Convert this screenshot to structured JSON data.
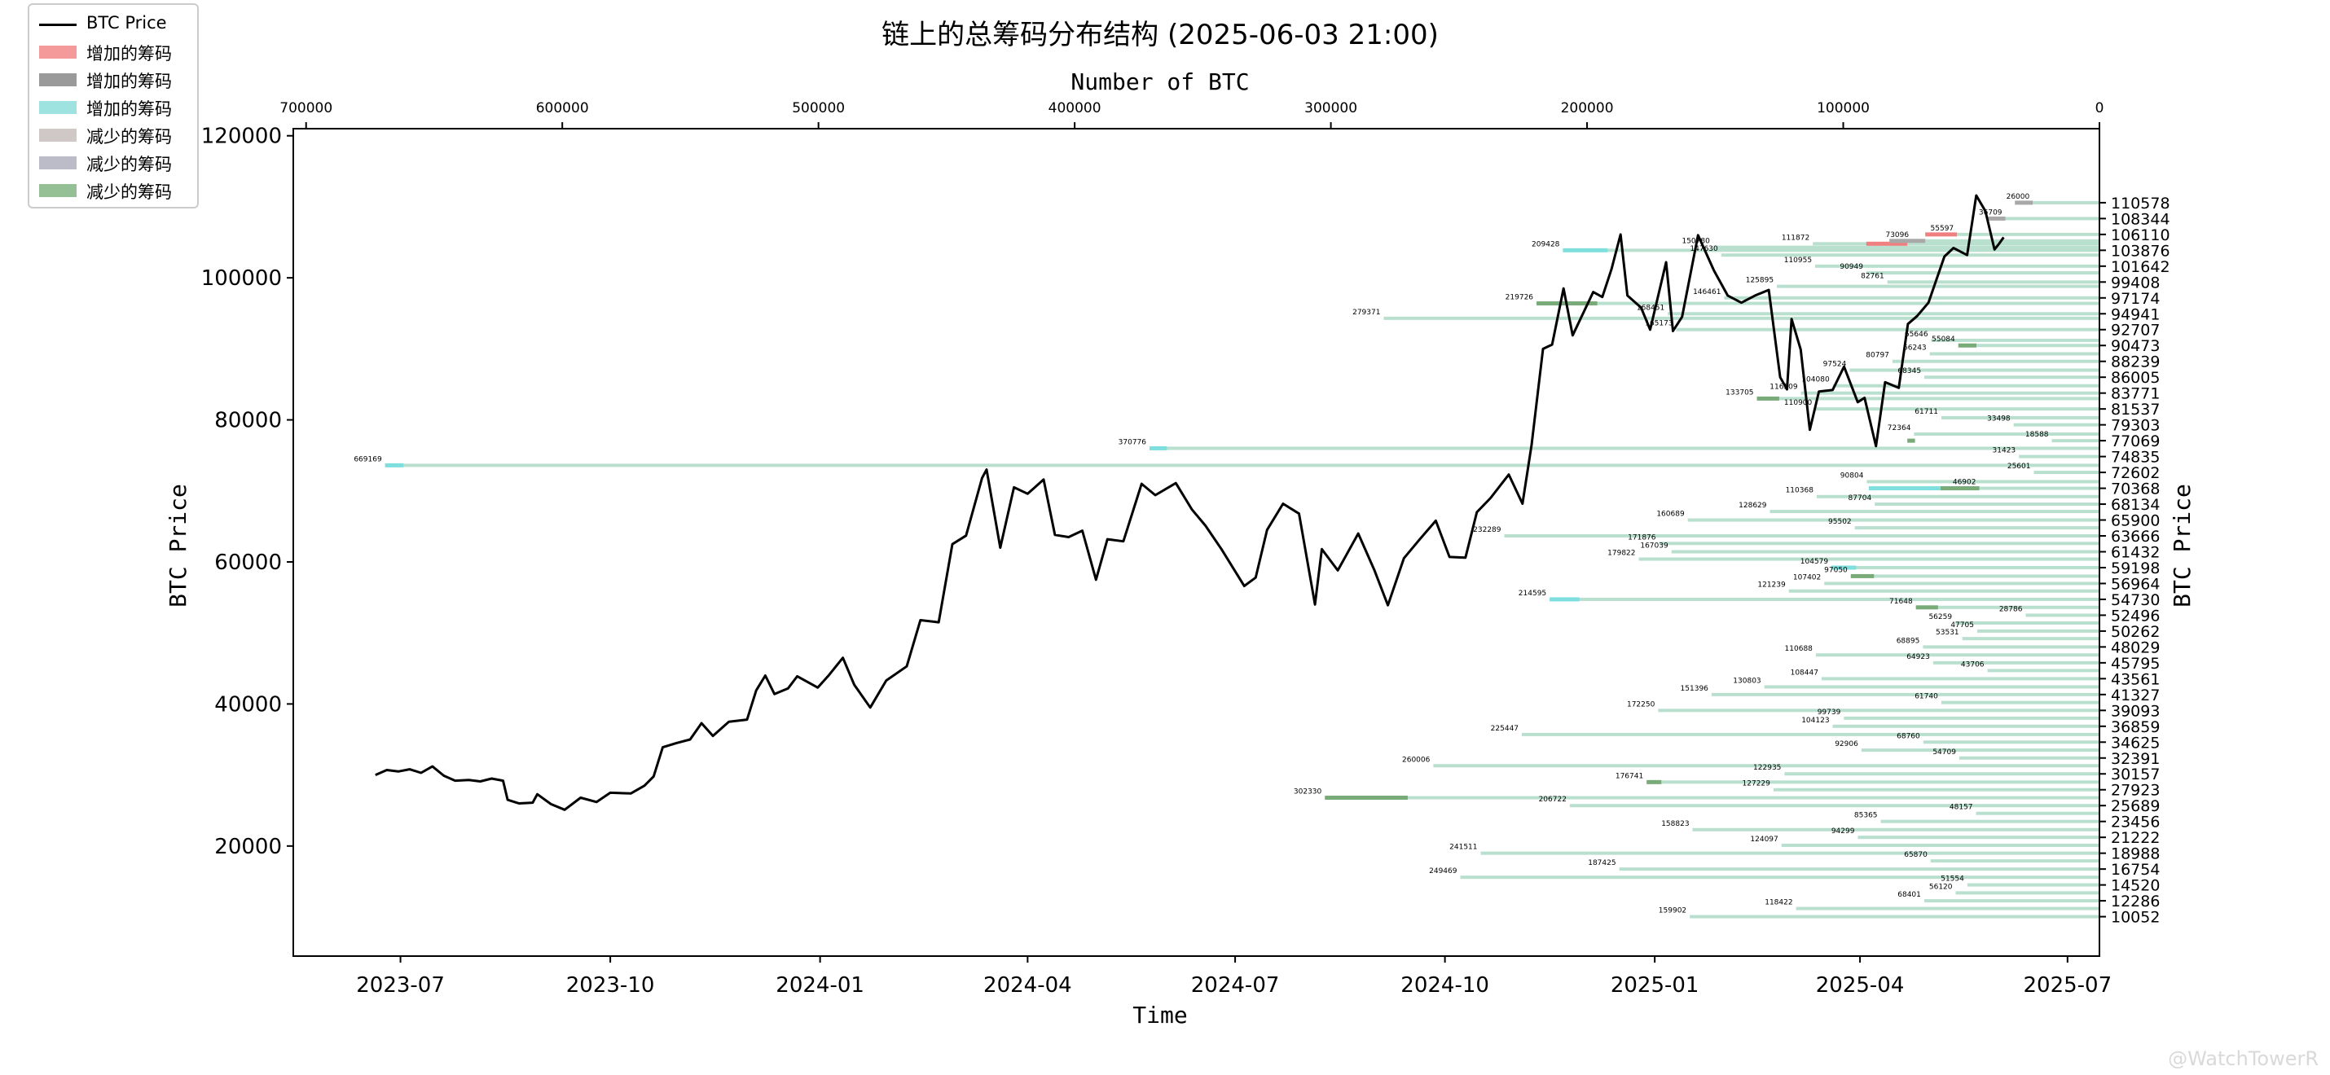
{
  "chart_data": {
    "type": "line",
    "title": "链上的总筹码分布结构 (2025-06-03 21:00)",
    "xlabel": "Time",
    "ylabel": "BTC Price",
    "top_xlabel": "Number of BTC",
    "right_ylabel": "BTC Price",
    "x_ticks": [
      "2023-07",
      "2023-10",
      "2024-01",
      "2024-04",
      "2024-07",
      "2024-10",
      "2025-01",
      "2025-04",
      "2025-07"
    ],
    "x_range": [
      "2023-05-15",
      "2025-07-15"
    ],
    "y_ticks": [
      20000,
      40000,
      60000,
      80000,
      100000,
      120000
    ],
    "ylim": [
      4500,
      121000
    ],
    "top_x_ticks": [
      700000,
      600000,
      500000,
      400000,
      300000,
      200000,
      100000,
      0
    ],
    "top_xlim": [
      705000,
      0
    ],
    "grid": false,
    "legend_placement": "top-left",
    "colors": {
      "price_line": "#000000",
      "increase_red": "#f08080",
      "increase_gray": "#808080",
      "increase_cyan": "#7fdede",
      "decrease_gray": "#c0b8b8",
      "decrease_slate": "#a8a8b8",
      "decrease_green": "#79ab79",
      "bar_base": "#b9dfcf"
    },
    "legend": [
      {
        "label": "BTC Price",
        "kind": "line",
        "color": "#000000"
      },
      {
        "label": "增加的筹码",
        "kind": "patch",
        "color": "#f59a9a"
      },
      {
        "label": "增加的筹码",
        "kind": "patch",
        "color": "#9a9a9a"
      },
      {
        "label": "增加的筹码",
        "kind": "patch",
        "color": "#9fe3e0"
      },
      {
        "label": "减少的筹码",
        "kind": "patch",
        "color": "#cfc8c6"
      },
      {
        "label": "减少的筹码",
        "kind": "patch",
        "color": "#bcbcc8"
      },
      {
        "label": "减少的筹码",
        "kind": "patch",
        "color": "#95bf95"
      }
    ],
    "price_series": {
      "name": "BTC Price",
      "points": [
        [
          "2023-06-20",
          30000
        ],
        [
          "2023-06-25",
          30700
        ],
        [
          "2023-06-30",
          30500
        ],
        [
          "2023-07-05",
          30800
        ],
        [
          "2023-07-10",
          30300
        ],
        [
          "2023-07-15",
          31200
        ],
        [
          "2023-07-20",
          29900
        ],
        [
          "2023-07-25",
          29200
        ],
        [
          "2023-07-31",
          29300
        ],
        [
          "2023-08-05",
          29100
        ],
        [
          "2023-08-10",
          29500
        ],
        [
          "2023-08-15",
          29200
        ],
        [
          "2023-08-17",
          26500
        ],
        [
          "2023-08-22",
          26000
        ],
        [
          "2023-08-28",
          26100
        ],
        [
          "2023-08-30",
          27300
        ],
        [
          "2023-09-05",
          25900
        ],
        [
          "2023-09-11",
          25100
        ],
        [
          "2023-09-18",
          26800
        ],
        [
          "2023-09-25",
          26200
        ],
        [
          "2023-10-01",
          27500
        ],
        [
          "2023-10-10",
          27400
        ],
        [
          "2023-10-16",
          28500
        ],
        [
          "2023-10-20",
          29800
        ],
        [
          "2023-10-24",
          33900
        ],
        [
          "2023-10-30",
          34500
        ],
        [
          "2023-11-05",
          35000
        ],
        [
          "2023-11-10",
          37300
        ],
        [
          "2023-11-15",
          35500
        ],
        [
          "2023-11-22",
          37500
        ],
        [
          "2023-11-30",
          37800
        ],
        [
          "2023-12-04",
          41900
        ],
        [
          "2023-12-08",
          44000
        ],
        [
          "2023-12-12",
          41400
        ],
        [
          "2023-12-18",
          42200
        ],
        [
          "2023-12-22",
          43900
        ],
        [
          "2023-12-31",
          42300
        ],
        [
          "2024-01-05",
          44100
        ],
        [
          "2024-01-11",
          46500
        ],
        [
          "2024-01-16",
          42700
        ],
        [
          "2024-01-23",
          39500
        ],
        [
          "2024-01-30",
          43300
        ],
        [
          "2024-02-08",
          45300
        ],
        [
          "2024-02-14",
          51800
        ],
        [
          "2024-02-22",
          51500
        ],
        [
          "2024-02-28",
          62500
        ],
        [
          "2024-03-05",
          63700
        ],
        [
          "2024-03-12",
          71800
        ],
        [
          "2024-03-14",
          73000
        ],
        [
          "2024-03-20",
          62000
        ],
        [
          "2024-03-26",
          70500
        ],
        [
          "2024-04-01",
          69600
        ],
        [
          "2024-04-08",
          71600
        ],
        [
          "2024-04-13",
          63800
        ],
        [
          "2024-04-19",
          63500
        ],
        [
          "2024-04-25",
          64400
        ],
        [
          "2024-05-01",
          57500
        ],
        [
          "2024-05-06",
          63200
        ],
        [
          "2024-05-13",
          62900
        ],
        [
          "2024-05-21",
          71000
        ],
        [
          "2024-05-27",
          69400
        ],
        [
          "2024-06-05",
          71100
        ],
        [
          "2024-06-12",
          67400
        ],
        [
          "2024-06-18",
          65100
        ],
        [
          "2024-06-25",
          61800
        ],
        [
          "2024-07-05",
          56600
        ],
        [
          "2024-07-10",
          57800
        ],
        [
          "2024-07-15",
          64500
        ],
        [
          "2024-07-22",
          68200
        ],
        [
          "2024-07-29",
          66800
        ],
        [
          "2024-08-05",
          54000
        ],
        [
          "2024-08-08",
          61800
        ],
        [
          "2024-08-15",
          58800
        ],
        [
          "2024-08-24",
          64000
        ],
        [
          "2024-08-31",
          58900
        ],
        [
          "2024-09-06",
          53900
        ],
        [
          "2024-09-13",
          60500
        ],
        [
          "2024-09-20",
          63200
        ],
        [
          "2024-09-27",
          65800
        ],
        [
          "2024-10-03",
          60700
        ],
        [
          "2024-10-10",
          60600
        ],
        [
          "2024-10-15",
          67000
        ],
        [
          "2024-10-21",
          69000
        ],
        [
          "2024-10-29",
          72300
        ],
        [
          "2024-11-04",
          68200
        ],
        [
          "2024-11-08",
          76500
        ],
        [
          "2024-11-13",
          90000
        ],
        [
          "2024-11-17",
          90600
        ],
        [
          "2024-11-22",
          98500
        ],
        [
          "2024-11-26",
          91900
        ],
        [
          "2024-12-05",
          98000
        ],
        [
          "2024-12-09",
          97300
        ],
        [
          "2024-12-13",
          101200
        ],
        [
          "2024-12-17",
          106100
        ],
        [
          "2024-12-20",
          97500
        ],
        [
          "2024-12-26",
          95800
        ],
        [
          "2024-12-30",
          92700
        ],
        [
          "2025-01-06",
          102200
        ],
        [
          "2025-01-09",
          92500
        ],
        [
          "2025-01-13",
          94500
        ],
        [
          "2025-01-20",
          106000
        ],
        [
          "2025-01-27",
          101000
        ],
        [
          "2025-02-02",
          97500
        ],
        [
          "2025-02-08",
          96500
        ],
        [
          "2025-02-14",
          97500
        ],
        [
          "2025-02-20",
          98300
        ],
        [
          "2025-02-25",
          86000
        ],
        [
          "2025-02-28",
          84300
        ],
        [
          "2025-03-02",
          94200
        ],
        [
          "2025-03-06",
          89900
        ],
        [
          "2025-03-10",
          78600
        ],
        [
          "2025-03-14",
          84000
        ],
        [
          "2025-03-20",
          84200
        ],
        [
          "2025-03-25",
          87500
        ],
        [
          "2025-03-31",
          82500
        ],
        [
          "2025-04-03",
          83100
        ],
        [
          "2025-04-08",
          76300
        ],
        [
          "2025-04-12",
          85300
        ],
        [
          "2025-04-18",
          84500
        ],
        [
          "2025-04-22",
          93500
        ],
        [
          "2025-04-26",
          94600
        ],
        [
          "2025-05-01",
          96500
        ],
        [
          "2025-05-08",
          103000
        ],
        [
          "2025-05-12",
          104200
        ],
        [
          "2025-05-18",
          103200
        ],
        [
          "2025-05-22",
          111600
        ],
        [
          "2025-05-26",
          109400
        ],
        [
          "2025-05-30",
          104000
        ],
        [
          "2025-06-01",
          104800
        ],
        [
          "2025-06-03",
          105700
        ]
      ]
    },
    "distribution": {
      "bar_series_name": "Number of BTC",
      "levels": [
        {
          "price": 110578,
          "btc": 26000
        },
        {
          "price": 108344,
          "btc": 36709
        },
        {
          "price": 106110,
          "btc": 55597
        },
        {
          "price": 105200,
          "btc": 73096
        },
        {
          "price": 104800,
          "btc": 111872
        },
        {
          "price": 104300,
          "btc": 150780
        },
        {
          "price": 103876,
          "btc": 209428
        },
        {
          "price": 103200,
          "btc": 147630
        },
        {
          "price": 101642,
          "btc": 110955
        },
        {
          "price": 100700,
          "btc": 90949
        },
        {
          "price": 99408,
          "btc": 82761
        },
        {
          "price": 98800,
          "btc": 125895
        },
        {
          "price": 97174,
          "btc": 146461
        },
        {
          "price": 96400,
          "btc": 219726
        },
        {
          "price": 94941,
          "btc": 168451
        },
        {
          "price": 94300,
          "btc": 279371
        },
        {
          "price": 92707,
          "btc": 165173
        },
        {
          "price": 91200,
          "btc": 65646
        },
        {
          "price": 90473,
          "btc": 55084
        },
        {
          "price": 89300,
          "btc": 66243
        },
        {
          "price": 88239,
          "btc": 80797
        },
        {
          "price": 87000,
          "btc": 97524
        },
        {
          "price": 86005,
          "btc": 68345
        },
        {
          "price": 84800,
          "btc": 104080
        },
        {
          "price": 83771,
          "btc": 116509
        },
        {
          "price": 83000,
          "btc": 133705
        },
        {
          "price": 81537,
          "btc": 110900
        },
        {
          "price": 80300,
          "btc": 61711
        },
        {
          "price": 79303,
          "btc": 33498
        },
        {
          "price": 78000,
          "btc": 72364
        },
        {
          "price": 77069,
          "btc": 18588
        },
        {
          "price": 76000,
          "btc": 370776
        },
        {
          "price": 74835,
          "btc": 31423
        },
        {
          "price": 73600,
          "btc": 669169
        },
        {
          "price": 72602,
          "btc": 25601
        },
        {
          "price": 71300,
          "btc": 90804
        },
        {
          "price": 70368,
          "btc": 46902
        },
        {
          "price": 69200,
          "btc": 110368
        },
        {
          "price": 68134,
          "btc": 87704
        },
        {
          "price": 67100,
          "btc": 128629
        },
        {
          "price": 65900,
          "btc": 160689
        },
        {
          "price": 64800,
          "btc": 95502
        },
        {
          "price": 63666,
          "btc": 232289
        },
        {
          "price": 62600,
          "btc": 171876
        },
        {
          "price": 61432,
          "btc": 167039
        },
        {
          "price": 60400,
          "btc": 179822
        },
        {
          "price": 59198,
          "btc": 104579
        },
        {
          "price": 58000,
          "btc": 97050
        },
        {
          "price": 56964,
          "btc": 107402
        },
        {
          "price": 55900,
          "btc": 121239
        },
        {
          "price": 54730,
          "btc": 214595
        },
        {
          "price": 53600,
          "btc": 71648
        },
        {
          "price": 52496,
          "btc": 28786
        },
        {
          "price": 51400,
          "btc": 56259
        },
        {
          "price": 50262,
          "btc": 47705
        },
        {
          "price": 49200,
          "btc": 53531
        },
        {
          "price": 48029,
          "btc": 68895
        },
        {
          "price": 46900,
          "btc": 110688
        },
        {
          "price": 45795,
          "btc": 64923
        },
        {
          "price": 44700,
          "btc": 43706
        },
        {
          "price": 43561,
          "btc": 108447
        },
        {
          "price": 42400,
          "btc": 130803
        },
        {
          "price": 41327,
          "btc": 151396
        },
        {
          "price": 40200,
          "btc": 61740
        },
        {
          "price": 39093,
          "btc": 172250
        },
        {
          "price": 38000,
          "btc": 99739
        },
        {
          "price": 36859,
          "btc": 104123
        },
        {
          "price": 35700,
          "btc": 225447
        },
        {
          "price": 34625,
          "btc": 68760
        },
        {
          "price": 33500,
          "btc": 92906
        },
        {
          "price": 32391,
          "btc": 54709
        },
        {
          "price": 31300,
          "btc": 260006
        },
        {
          "price": 30157,
          "btc": 122935
        },
        {
          "price": 29000,
          "btc": 176741
        },
        {
          "price": 27923,
          "btc": 127229
        },
        {
          "price": 26800,
          "btc": 302330
        },
        {
          "price": 25689,
          "btc": 206722
        },
        {
          "price": 24600,
          "btc": 48157
        },
        {
          "price": 23456,
          "btc": 85365
        },
        {
          "price": 22300,
          "btc": 158823
        },
        {
          "price": 21222,
          "btc": 94299
        },
        {
          "price": 20100,
          "btc": 124097
        },
        {
          "price": 18988,
          "btc": 241511
        },
        {
          "price": 17900,
          "btc": 65870
        },
        {
          "price": 16754,
          "btc": 187425
        },
        {
          "price": 15600,
          "btc": 249469
        },
        {
          "price": 14520,
          "btc": 51554
        },
        {
          "price": 13400,
          "btc": 56120
        },
        {
          "price": 12286,
          "btc": 68401
        },
        {
          "price": 11200,
          "btc": 118422
        },
        {
          "price": 10052,
          "btc": 159902
        }
      ],
      "right_ticks": [
        110578,
        108344,
        106110,
        103876,
        101642,
        99408,
        97174,
        94941,
        92707,
        90473,
        88239,
        86005,
        83771,
        81537,
        79303,
        77069,
        74835,
        72602,
        70368,
        68134,
        65900,
        63666,
        61432,
        59198,
        56964,
        54730,
        52496,
        50262,
        48029,
        45795,
        43561,
        41327,
        39093,
        36859,
        34625,
        32391,
        30157,
        27923,
        25689,
        23456,
        21222,
        18988,
        16754,
        14520,
        12286,
        10052
      ],
      "highlights": [
        {
          "price": 106110,
          "from": 55597,
          "to": 68000,
          "color": "#f08080"
        },
        {
          "price": 104800,
          "from": 75000,
          "to": 91000,
          "color": "#f08080"
        },
        {
          "price": 110578,
          "from": 26000,
          "to": 33000,
          "color": "#a8a8a8"
        },
        {
          "price": 108344,
          "from": 36709,
          "to": 44000,
          "color": "#a8a8a8"
        },
        {
          "price": 105200,
          "from": 68000,
          "to": 82000,
          "color": "#a8a8a8"
        },
        {
          "price": 103876,
          "from": 192000,
          "to": 209428,
          "color": "#7fdede"
        },
        {
          "price": 76000,
          "from": 364000,
          "to": 370776,
          "color": "#7fdede"
        },
        {
          "price": 73600,
          "from": 662000,
          "to": 669169,
          "color": "#7fdede"
        },
        {
          "price": 70368,
          "from": 46902,
          "to": 90000,
          "color": "#7fdede"
        },
        {
          "price": 54730,
          "from": 203000,
          "to": 214595,
          "color": "#7fdede"
        },
        {
          "price": 59198,
          "from": 95000,
          "to": 104579,
          "color": "#7fdede"
        },
        {
          "price": 96400,
          "from": 196000,
          "to": 219726,
          "color": "#79ab79"
        },
        {
          "price": 83000,
          "from": 125000,
          "to": 133705,
          "color": "#79ab79"
        },
        {
          "price": 70368,
          "from": 46902,
          "to": 62000,
          "color": "#79ab79"
        },
        {
          "price": 58000,
          "from": 88000,
          "to": 97050,
          "color": "#79ab79"
        },
        {
          "price": 53600,
          "from": 63000,
          "to": 71648,
          "color": "#79ab79"
        },
        {
          "price": 29000,
          "from": 171000,
          "to": 176741,
          "color": "#79ab79"
        },
        {
          "price": 26800,
          "from": 270000,
          "to": 302330,
          "color": "#79ab79"
        },
        {
          "price": 90473,
          "from": 48000,
          "to": 55084,
          "color": "#79ab79"
        },
        {
          "price": 77069,
          "from": 72000,
          "to": 75000,
          "color": "#79ab79"
        }
      ]
    }
  },
  "watermark": "@WatchTowerR"
}
